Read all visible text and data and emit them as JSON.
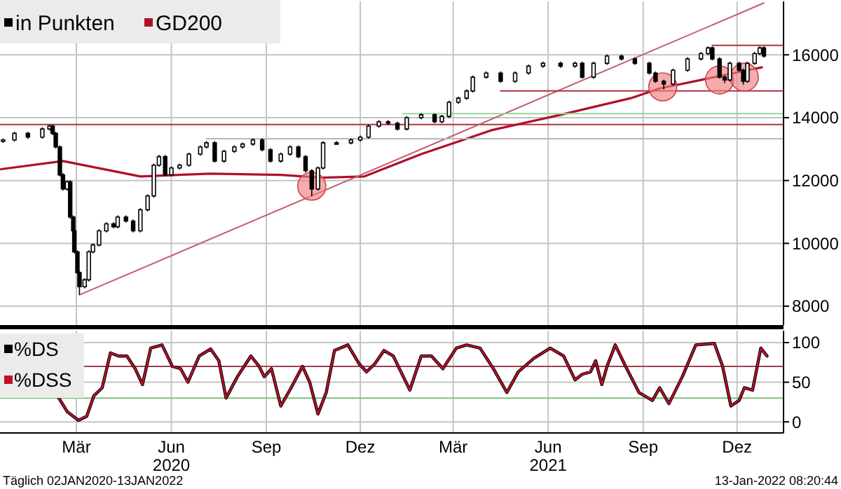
{
  "chart_data": [
    {
      "type": "candlestick",
      "xlim": [
        "2020-01-01",
        "2022-01-29"
      ],
      "ylim": [
        7400,
        17700
      ],
      "yticks": [
        8000,
        10000,
        12000,
        14000,
        16000
      ],
      "xticks": [
        "2020-03-15",
        "2020-06-15",
        "2020-09-15",
        "2020-12-15",
        "2021-03-15",
        "2021-06-15",
        "2021-09-15",
        "2021-12-15"
      ],
      "tick_labels": "y",
      "grid": true,
      "legend": "top left",
      "ref_lines": [
        {
          "axis": "y",
          "value": 13780,
          "color": "#b03040"
        }
      ],
      "series": [
        {
          "name": "in Punkten",
          "color": "#000000",
          "x": [
            "2020-01-04",
            "2020-01-15",
            "2020-01-28",
            "2020-02-11",
            "2020-02-18",
            "2020-02-21",
            "2020-02-24",
            "2020-02-28",
            "2020-03-02",
            "2020-03-06",
            "2020-03-09",
            "2020-03-12",
            "2020-03-13",
            "2020-03-16",
            "2020-03-18",
            "2020-03-23",
            "2020-03-27",
            "2020-03-31",
            "2020-04-06",
            "2020-04-13",
            "2020-04-20",
            "2020-04-24",
            "2020-05-02",
            "2020-05-09",
            "2020-05-16",
            "2020-05-23",
            "2020-05-29",
            "2020-06-03",
            "2020-06-09",
            "2020-06-15",
            "2020-06-23",
            "2020-07-02",
            "2020-07-13",
            "2020-07-19",
            "2020-07-27",
            "2020-08-05",
            "2020-08-15",
            "2020-08-23",
            "2020-09-02",
            "2020-09-11",
            "2020-09-19",
            "2020-09-29",
            "2020-10-08",
            "2020-10-16",
            "2020-10-23",
            "2020-10-29",
            "2020-11-04",
            "2020-11-09",
            "2020-11-22",
            "2020-12-06",
            "2020-12-15",
            "2020-12-23",
            "2021-01-02",
            "2021-01-11",
            "2021-01-20",
            "2021-01-29",
            "2021-02-12",
            "2021-02-25",
            "2021-03-04",
            "2021-03-11",
            "2021-03-20",
            "2021-03-28",
            "2021-04-03",
            "2021-04-16",
            "2021-04-30",
            "2021-05-14",
            "2021-05-27",
            "2021-06-10",
            "2021-06-27",
            "2021-07-11",
            "2021-07-18",
            "2021-07-29",
            "2021-08-11",
            "2021-08-25",
            "2021-09-07",
            "2021-09-21",
            "2021-09-27",
            "2021-10-05",
            "2021-10-14",
            "2021-10-28",
            "2021-11-10",
            "2021-11-17",
            "2021-11-21",
            "2021-11-28",
            "2021-12-03",
            "2021-12-08",
            "2021-12-17",
            "2021-12-21",
            "2021-12-25",
            "2022-01-01",
            "2022-01-06",
            "2022-01-10"
          ],
          "ohlc": [
            [
              13250,
              13340,
              13200,
              13290
            ],
            [
              13290,
              13550,
              13240,
              13500
            ],
            [
              13500,
              13550,
              13330,
              13380
            ],
            [
              13380,
              13690,
              13330,
              13640
            ],
            [
              13640,
              13790,
              13590,
              13730
            ],
            [
              13730,
              13780,
              13450,
              13500
            ],
            [
              13500,
              13550,
              13020,
              13070
            ],
            [
              13070,
              13120,
              12130,
              12180
            ],
            [
              12180,
              12230,
              11680,
              11730
            ],
            [
              11730,
              12010,
              11680,
              11960
            ],
            [
              11960,
              12010,
              10790,
              10840
            ],
            [
              10840,
              10890,
              10350,
              10400
            ],
            [
              10400,
              10450,
              9680,
              9730
            ],
            [
              9730,
              9780,
              9020,
              9070
            ],
            [
              9070,
              9120,
              8360,
              8620
            ],
            [
              8620,
              8890,
              8570,
              8840
            ],
            [
              8840,
              9780,
              8790,
              9730
            ],
            [
              9730,
              10000,
              9680,
              9950
            ],
            [
              9950,
              10450,
              9900,
              10400
            ],
            [
              10400,
              10670,
              10350,
              10620
            ],
            [
              10620,
              10670,
              10480,
              10530
            ],
            [
              10530,
              10890,
              10480,
              10840
            ],
            [
              10840,
              10890,
              10660,
              10710
            ],
            [
              10710,
              10760,
              10350,
              10400
            ],
            [
              10400,
              11120,
              10350,
              11070
            ],
            [
              11070,
              11560,
              11020,
              11510
            ],
            [
              11510,
              12540,
              11460,
              12490
            ],
            [
              12490,
              12810,
              12440,
              12760
            ],
            [
              12760,
              12810,
              12130,
              12180
            ],
            [
              12180,
              12450,
              12130,
              12400
            ],
            [
              12400,
              12540,
              12350,
              12490
            ],
            [
              12490,
              12890,
              12440,
              12840
            ],
            [
              12840,
              13120,
              12790,
              13070
            ],
            [
              13070,
              13250,
              13020,
              13200
            ],
            [
              13200,
              13250,
              12570,
              12620
            ],
            [
              12620,
              12980,
              12570,
              12930
            ],
            [
              12930,
              13120,
              12880,
              13070
            ],
            [
              13070,
              13210,
              13020,
              13160
            ],
            [
              13160,
              13340,
              13110,
              13290
            ],
            [
              13290,
              13340,
              12930,
              12980
            ],
            [
              12980,
              13030,
              12570,
              12620
            ],
            [
              12620,
              12890,
              12570,
              12840
            ],
            [
              12840,
              13120,
              12790,
              13070
            ],
            [
              13070,
              13120,
              12710,
              12760
            ],
            [
              12760,
              12810,
              12260,
              12310
            ],
            [
              12310,
              12360,
              11510,
              11730
            ],
            [
              11730,
              12450,
              11680,
              12400
            ],
            [
              12400,
              13250,
              12350,
              13200
            ],
            [
              13200,
              13250,
              13150,
              13200
            ],
            [
              13200,
              13340,
              13150,
              13290
            ],
            [
              13290,
              13430,
              13240,
              13380
            ],
            [
              13380,
              13780,
              13330,
              13730
            ],
            [
              13730,
              13920,
              13680,
              13870
            ],
            [
              13870,
              13920,
              13770,
              13820
            ],
            [
              13820,
              13870,
              13590,
              13640
            ],
            [
              13640,
              14050,
              13590,
              14000
            ],
            [
              14000,
              14140,
              13950,
              14090
            ],
            [
              14090,
              14140,
              13820,
              13870
            ],
            [
              13870,
              14090,
              13820,
              14040
            ],
            [
              14040,
              14540,
              13990,
              14490
            ],
            [
              14490,
              14670,
              14440,
              14620
            ],
            [
              14620,
              14900,
              14570,
              14850
            ],
            [
              14850,
              15340,
              14800,
              15290
            ],
            [
              15290,
              15470,
              15240,
              15420
            ],
            [
              15420,
              15470,
              15110,
              15160
            ],
            [
              15160,
              15470,
              15110,
              15420
            ],
            [
              15420,
              15690,
              15370,
              15640
            ],
            [
              15640,
              15780,
              15590,
              15730
            ],
            [
              15730,
              15780,
              15590,
              15640
            ],
            [
              15640,
              15780,
              15590,
              15730
            ],
            [
              15730,
              15780,
              15240,
              15290
            ],
            [
              15290,
              15780,
              15240,
              15730
            ],
            [
              15730,
              16010,
              15680,
              15960
            ],
            [
              15960,
              16010,
              15820,
              15870
            ],
            [
              15870,
              15920,
              15680,
              15730
            ],
            [
              15730,
              15780,
              15370,
              15420
            ],
            [
              15420,
              15470,
              15110,
              15160
            ],
            [
              15160,
              15210,
              14900,
              15070
            ],
            [
              15070,
              15560,
              15020,
              15510
            ],
            [
              15510,
              15920,
              15460,
              15870
            ],
            [
              15870,
              16090,
              15820,
              16040
            ],
            [
              16040,
              16270,
              15990,
              16220
            ],
            [
              16220,
              16270,
              15820,
              15870
            ],
            [
              15870,
              15920,
              15240,
              15290
            ],
            [
              15290,
              15340,
              15100,
              15200
            ],
            [
              15200,
              15780,
              15150,
              15730
            ],
            [
              15730,
              15780,
              15460,
              15510
            ],
            [
              15510,
              15560,
              15050,
              15160
            ],
            [
              15160,
              15780,
              15110,
              15730
            ],
            [
              15730,
              16090,
              15680,
              16040
            ],
            [
              16040,
              16270,
              15990,
              16220
            ],
            [
              16220,
              16270,
              15910,
              15960
            ]
          ]
        },
        {
          "type": "line",
          "name": "GD200",
          "color": "#b0102a",
          "x": [
            "2020-01-02",
            "2020-03-02",
            "2020-05-16",
            "2020-07-23",
            "2020-09-29",
            "2020-11-08",
            "2020-12-19",
            "2021-02-12",
            "2021-04-21",
            "2021-06-27",
            "2021-09-03",
            "2021-10-01",
            "2021-11-10",
            "2021-12-25",
            "2022-01-08"
          ],
          "values": [
            12360,
            12620,
            12130,
            12220,
            12180,
            12090,
            12130,
            12840,
            13600,
            14090,
            14620,
            14930,
            15200,
            15510,
            15600
          ]
        },
        {
          "type": "line",
          "color": "#c06070",
          "x": [
            "2020-03-18",
            "2022-01-10"
          ],
          "values": [
            8360,
            17650
          ]
        },
        {
          "type": "line",
          "color": "#98d898",
          "x": [
            "2021-01-25",
            "2022-01-28"
          ],
          "values": [
            14130,
            14130
          ]
        },
        {
          "type": "line",
          "color": "#b03040",
          "x": [
            "2021-04-30",
            "2022-01-28"
          ],
          "values": [
            14850,
            14850
          ]
        },
        {
          "type": "line",
          "color": "#b03040",
          "x": [
            "2021-11-21",
            "2022-01-28"
          ],
          "values": [
            16300,
            16300
          ]
        },
        {
          "type": "line",
          "color": "#b8b8b8",
          "x": [
            "2020-07-19",
            "2022-01-28"
          ],
          "values": [
            13330,
            13330
          ]
        },
        {
          "type": "scatter",
          "marker": "circle",
          "color": "#f08080",
          "x": [
            "2020-10-29",
            "2021-10-04",
            "2021-11-28",
            "2021-12-22"
          ],
          "values": [
            11820,
            14980,
            15200,
            15290
          ]
        }
      ]
    },
    {
      "type": "line",
      "xlim": [
        "2020-01-01",
        "2022-01-29"
      ],
      "ylim": [
        -14,
        115
      ],
      "yticks": [
        0,
        50,
        100
      ],
      "xticks": [
        {
          "value": "2020-03-15",
          "label": "Mär"
        },
        {
          "value": "2020-06-15",
          "label": "Jun\n2020"
        },
        {
          "value": "2020-09-15",
          "label": "Sep"
        },
        {
          "value": "2020-12-15",
          "label": "Dez"
        },
        {
          "value": "2021-03-15",
          "label": "Mär"
        },
        {
          "value": "2021-06-15",
          "label": "Jun\n2021"
        },
        {
          "value": "2021-09-15",
          "label": "Sep"
        },
        {
          "value": "2021-12-15",
          "label": "Dez"
        }
      ],
      "grid": true,
      "legend": "top left",
      "ref_lines": [
        {
          "axis": "y",
          "value": 70,
          "color": "#a04050"
        },
        {
          "axis": "y",
          "value": 30,
          "color": "#80c080"
        }
      ],
      "annotations": [
        "Täglich 02JAN2020-13JAN2022",
        "13-Jan-2022 08:20:44"
      ],
      "series": [
        {
          "name": "%DS",
          "color": "#000000",
          "x": [
            "2020-02-27",
            "2020-03-06",
            "2020-03-17",
            "2020-03-25",
            "2020-04-01",
            "2020-04-09",
            "2020-04-17",
            "2020-04-25",
            "2020-05-03",
            "2020-05-11",
            "2020-05-18",
            "2020-05-26",
            "2020-06-06",
            "2020-06-16",
            "2020-06-24",
            "2020-07-01",
            "2020-07-12",
            "2020-07-23",
            "2020-07-31",
            "2020-08-07",
            "2020-08-18",
            "2020-08-31",
            "2020-09-08",
            "2020-09-13",
            "2020-09-20",
            "2020-09-29",
            "2020-10-09",
            "2020-10-20",
            "2020-10-27",
            "2020-11-04",
            "2020-11-12",
            "2020-11-20",
            "2020-12-03",
            "2020-12-14",
            "2020-12-21",
            "2020-12-29",
            "2021-01-07",
            "2021-01-16",
            "2021-02-01",
            "2021-02-12",
            "2021-02-22",
            "2021-03-05",
            "2021-03-18",
            "2021-03-28",
            "2021-04-10",
            "2021-04-23",
            "2021-05-06",
            "2021-05-17",
            "2021-06-01",
            "2021-06-17",
            "2021-06-30",
            "2021-07-11",
            "2021-07-18",
            "2021-07-26",
            "2021-07-31",
            "2021-08-06",
            "2021-08-11",
            "2021-08-19",
            "2021-08-29",
            "2021-09-11",
            "2021-09-24",
            "2021-10-01",
            "2021-10-10",
            "2021-10-23",
            "2021-11-05",
            "2021-11-23",
            "2021-12-01",
            "2021-12-09",
            "2021-12-17",
            "2021-12-22",
            "2021-12-30",
            "2022-01-07",
            "2022-01-13"
          ],
          "values": [
            30,
            13,
            2,
            7,
            33,
            43,
            87,
            83,
            83,
            67,
            47,
            93,
            97,
            70,
            67,
            50,
            83,
            92,
            77,
            30,
            57,
            83,
            70,
            57,
            67,
            20,
            43,
            70,
            50,
            10,
            37,
            90,
            97,
            73,
            63,
            73,
            90,
            83,
            40,
            83,
            83,
            67,
            93,
            97,
            93,
            67,
            37,
            63,
            80,
            93,
            83,
            53,
            60,
            63,
            77,
            47,
            70,
            97,
            70,
            37,
            27,
            43,
            23,
            57,
            97,
            99,
            70,
            20,
            27,
            43,
            40,
            93,
            83
          ]
        },
        {
          "name": "%DSS",
          "color": "#c0102a",
          "x": [
            "2020-02-27",
            "2020-03-06",
            "2020-03-17",
            "2020-03-25",
            "2020-04-01",
            "2020-04-09",
            "2020-04-17",
            "2020-04-25",
            "2020-05-03",
            "2020-05-11",
            "2020-05-18",
            "2020-05-26",
            "2020-06-06",
            "2020-06-16",
            "2020-06-24",
            "2020-07-01",
            "2020-07-12",
            "2020-07-23",
            "2020-07-31",
            "2020-08-07",
            "2020-08-18",
            "2020-08-31",
            "2020-09-08",
            "2020-09-13",
            "2020-09-20",
            "2020-09-29",
            "2020-10-09",
            "2020-10-20",
            "2020-10-27",
            "2020-11-04",
            "2020-11-12",
            "2020-11-20",
            "2020-12-03",
            "2020-12-14",
            "2020-12-21",
            "2020-12-29",
            "2021-01-07",
            "2021-01-16",
            "2021-02-01",
            "2021-02-12",
            "2021-02-22",
            "2021-03-05",
            "2021-03-18",
            "2021-03-28",
            "2021-04-10",
            "2021-04-23",
            "2021-05-06",
            "2021-05-17",
            "2021-06-01",
            "2021-06-17",
            "2021-06-30",
            "2021-07-11",
            "2021-07-18",
            "2021-07-26",
            "2021-07-31",
            "2021-08-06",
            "2021-08-11",
            "2021-08-19",
            "2021-08-29",
            "2021-09-11",
            "2021-09-24",
            "2021-10-01",
            "2021-10-10",
            "2021-10-23",
            "2021-11-05",
            "2021-11-23",
            "2021-12-01",
            "2021-12-09",
            "2021-12-17",
            "2021-12-22",
            "2021-12-30",
            "2022-01-07",
            "2022-01-13"
          ],
          "values": [
            30,
            13,
            2,
            7,
            33,
            43,
            87,
            83,
            83,
            67,
            47,
            93,
            97,
            70,
            67,
            50,
            83,
            92,
            77,
            30,
            57,
            83,
            70,
            57,
            67,
            20,
            43,
            70,
            50,
            10,
            37,
            90,
            97,
            73,
            63,
            73,
            90,
            83,
            40,
            83,
            83,
            67,
            93,
            97,
            93,
            67,
            37,
            63,
            80,
            93,
            83,
            53,
            60,
            63,
            77,
            47,
            70,
            97,
            70,
            37,
            27,
            43,
            23,
            57,
            97,
            99,
            70,
            20,
            27,
            43,
            40,
            93,
            83
          ]
        }
      ]
    }
  ]
}
